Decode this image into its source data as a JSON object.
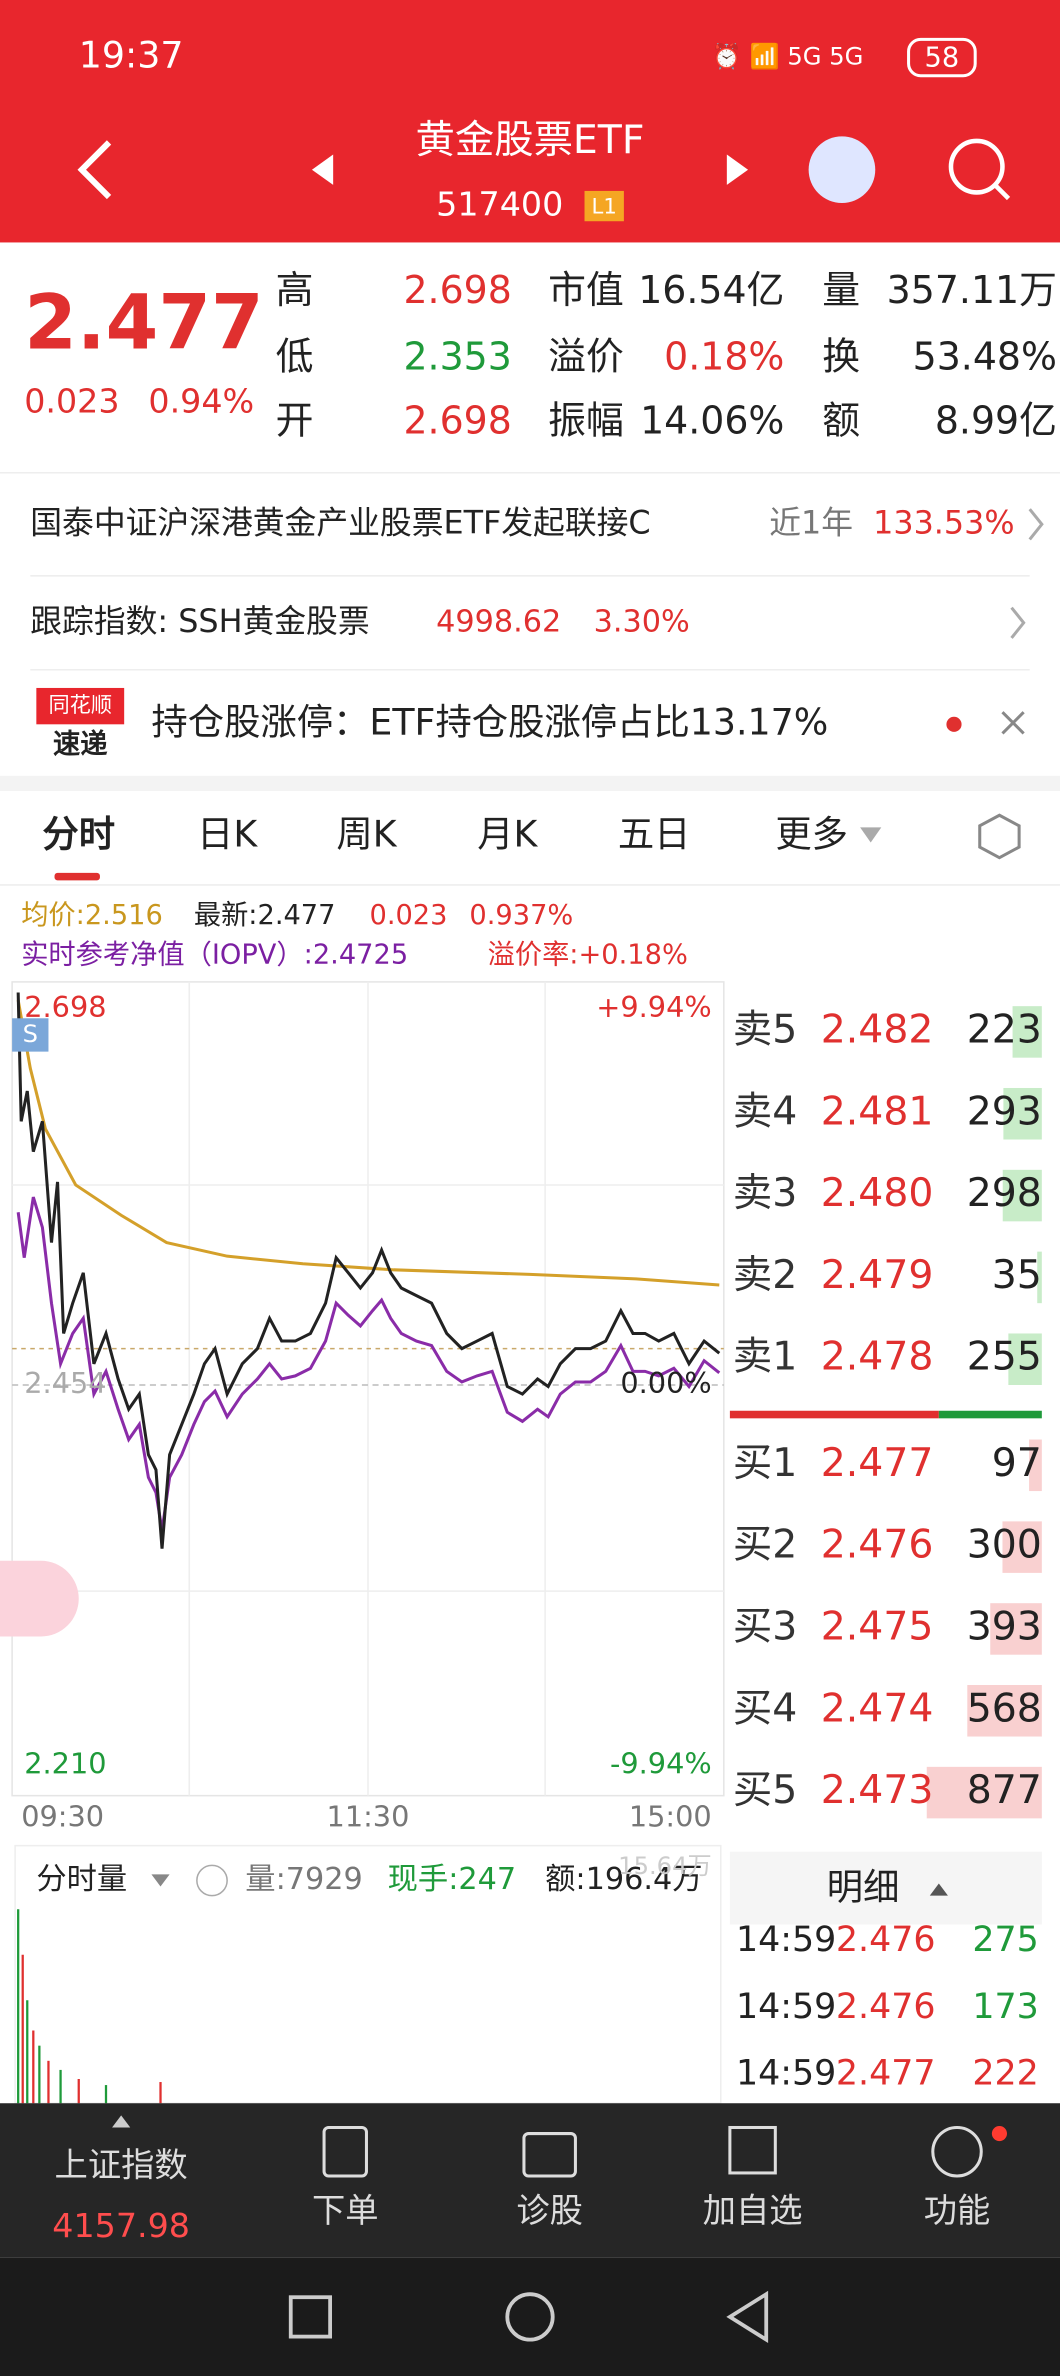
{
  "status_bar": {
    "time": "19:37",
    "battery": "58"
  },
  "header": {
    "title": "黄金股票ETF",
    "code": "517400",
    "level": "L1"
  },
  "quote": {
    "price": "2.477",
    "change": "0.023",
    "change_pct": "0.94%",
    "stats": [
      {
        "label": "高",
        "value": "2.698"
      },
      {
        "label": "低",
        "value": "2.353"
      },
      {
        "label": "开",
        "value": "2.698"
      },
      {
        "label": "市值",
        "value": "16.54亿"
      },
      {
        "label": "溢价",
        "value": "0.18%"
      },
      {
        "label": "振幅",
        "value": "14.06%"
      },
      {
        "label": "量",
        "value": "357.11万"
      },
      {
        "label": "换",
        "value": "53.48%"
      },
      {
        "label": "额",
        "value": "8.99亿"
      }
    ]
  },
  "fund": {
    "name": "国泰中证沪深港黄金产业股票ETF发起联接C",
    "period": "近1年",
    "return": "133.53%"
  },
  "tracking": {
    "label": "跟踪指数: SSH黄金股票",
    "value": "4998.62",
    "change": "3.30%"
  },
  "news": {
    "badge_top": "同花顺",
    "badge_bottom": "速递",
    "text": "持仓股涨停：ETF持仓股涨停占比13.17%"
  },
  "tabs": [
    "分时",
    "日K",
    "周K",
    "月K",
    "五日",
    "更多"
  ],
  "info": {
    "avg": "均价:2.516",
    "latest": "最新:2.477",
    "change": "0.023",
    "change_pct": "0.937%",
    "iopv": "实时参考净值（IOPV）:2.4725",
    "premium": "溢价率:+0.18%"
  },
  "chart": {
    "y_top": "2.698",
    "y_mid": "2.454",
    "y_bottom": "2.210",
    "pct_top": "+9.94%",
    "pct_mid": "0.00%",
    "pct_bottom": "-9.94%",
    "badge": "S",
    "times": [
      "09:30",
      "11:30",
      "15:00"
    ]
  },
  "order_book": {
    "asks": [
      {
        "label": "卖5",
        "price": "2.482",
        "volume": 223
      },
      {
        "label": "卖4",
        "price": "2.481",
        "volume": 293
      },
      {
        "label": "卖3",
        "price": "2.480",
        "volume": 298
      },
      {
        "label": "卖2",
        "price": "2.479",
        "volume": 35
      },
      {
        "label": "卖1",
        "price": "2.478",
        "volume": 255
      }
    ],
    "bids": [
      {
        "label": "买1",
        "price": "2.477",
        "volume": 97
      },
      {
        "label": "买2",
        "price": "2.476",
        "volume": 300
      },
      {
        "label": "买3",
        "price": "2.475",
        "volume": 393
      },
      {
        "label": "买4",
        "price": "2.474",
        "volume": 568
      },
      {
        "label": "买5",
        "price": "2.473",
        "volume": 877
      }
    ]
  },
  "detail": {
    "title": "明细",
    "rows": [
      [
        "14:59",
        "2.476",
        "275"
      ],
      [
        "14:59",
        "2.476",
        "173"
      ],
      [
        "14:59",
        "2.477",
        "222"
      ]
    ]
  },
  "volume": {
    "selector": "分时量",
    "volume": "量:7929",
    "current": "现手:247",
    "amount": "额:196.4万",
    "axis_max": "15.64万"
  },
  "nav": {
    "index_name": "上证指数",
    "index_value": "4157.98",
    "items": [
      "下单",
      "诊股",
      "加自选",
      "功能"
    ]
  }
}
